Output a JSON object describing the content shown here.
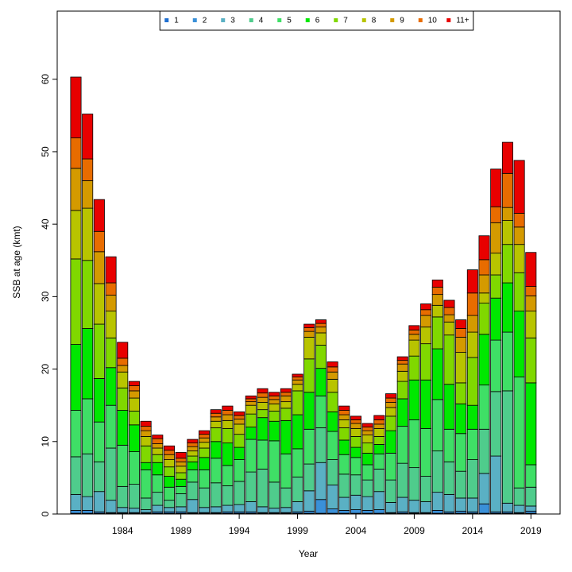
{
  "chart_data": {
    "type": "stacked-bar",
    "xlabel": "Year",
    "ylabel": "SSB at age (kmt)",
    "x": [
      1980,
      1981,
      1982,
      1983,
      1984,
      1985,
      1986,
      1987,
      1988,
      1989,
      1990,
      1991,
      1992,
      1993,
      1994,
      1995,
      1996,
      1997,
      1998,
      1999,
      2000,
      2001,
      2002,
      2003,
      2004,
      2005,
      2006,
      2007,
      2008,
      2009,
      2010,
      2011,
      2012,
      2013,
      2014,
      2015,
      2016,
      2017,
      2018,
      2019
    ],
    "xlim": [
      1978.4,
      2021.5
    ],
    "xticks": [
      1984,
      1989,
      1994,
      1999,
      2004,
      2009,
      2014,
      2019
    ],
    "ylim": [
      0,
      69.4
    ],
    "yticks": [
      0,
      10,
      20,
      30,
      40,
      50,
      60
    ],
    "legend": "top",
    "series": [
      {
        "name": "1",
        "color": "#1f6fd0",
        "values": [
          0.1,
          0.1,
          0.1,
          0.1,
          0.1,
          0.1,
          0.1,
          0.1,
          0.1,
          0.1,
          0.1,
          0.1,
          0.1,
          0.1,
          0.1,
          0.1,
          0.1,
          0.1,
          0.1,
          0.1,
          0.1,
          0.1,
          0.1,
          0.1,
          0.1,
          0.1,
          0.1,
          0.1,
          0.1,
          0.1,
          0.1,
          0.1,
          0.1,
          0.1,
          0.1,
          0.1,
          0.1,
          0.1,
          0.1,
          0.1
        ]
      },
      {
        "name": "2",
        "color": "#3a90d8",
        "values": [
          0.4,
          0.4,
          0.2,
          0.1,
          0.1,
          0.1,
          0.1,
          0.2,
          0.2,
          0.2,
          0.1,
          0.1,
          0.1,
          0.2,
          0.2,
          0.2,
          0.1,
          0.1,
          0.1,
          0.2,
          0.3,
          1.9,
          0.6,
          0.4,
          0.5,
          0.4,
          0.5,
          0.1,
          0.2,
          0.1,
          0.1,
          0.4,
          0.2,
          0.3,
          0.2,
          1.3,
          0.2,
          0.2,
          0.1,
          0.3
        ]
      },
      {
        "name": "3",
        "color": "#5ab0c4",
        "values": [
          2.2,
          1.9,
          2.8,
          1.7,
          0.7,
          0.6,
          0.4,
          0.9,
          0.6,
          0.7,
          1.8,
          0.7,
          0.8,
          0.9,
          1.0,
          1.4,
          0.8,
          0.6,
          0.7,
          1.4,
          2.8,
          5.1,
          3.3,
          1.8,
          2.0,
          1.9,
          2.5,
          1.4,
          2.0,
          1.7,
          1.5,
          2.5,
          2.4,
          1.8,
          1.9,
          4.2,
          7.7,
          1.2,
          1.0,
          0.7
        ]
      },
      {
        "name": "4",
        "color": "#4fcc8c",
        "values": [
          5.2,
          5.9,
          4.1,
          7.2,
          2.9,
          3.3,
          1.6,
          1.8,
          1.0,
          1.8,
          2.4,
          2.7,
          3.3,
          2.7,
          3.2,
          4.1,
          5.2,
          3.6,
          2.7,
          3.4,
          3.7,
          4.8,
          3.5,
          3.2,
          2.8,
          2.3,
          3.1,
          3.1,
          4.7,
          4.5,
          3.5,
          5.7,
          4.5,
          3.7,
          5.3,
          6.1,
          8.9,
          15.5,
          2.4,
          2.6
        ]
      },
      {
        "name": "5",
        "color": "#3fdf66",
        "values": [
          6.4,
          7.6,
          5.5,
          5.9,
          5.7,
          4.5,
          3.9,
          2.4,
          1.8,
          1.0,
          1.7,
          2.5,
          3.4,
          2.8,
          3.0,
          4.5,
          4.0,
          5.7,
          4.7,
          3.9,
          4.8,
          4.4,
          3.9,
          2.7,
          2.4,
          2.1,
          2.1,
          3.7,
          5.1,
          6.6,
          6.6,
          7.1,
          4.5,
          5.2,
          4.2,
          6.1,
          7.1,
          8.1,
          15.3,
          3.1
        ]
      },
      {
        "name": "6",
        "color": "#00e800",
        "values": [
          9.1,
          9.7,
          6.0,
          5.2,
          4.8,
          3.7,
          1.0,
          1.7,
          1.5,
          1.0,
          1.1,
          1.7,
          2.3,
          3.1,
          1.7,
          1.7,
          3.1,
          2.7,
          4.6,
          4.7,
          5.1,
          3.8,
          2.7,
          2.0,
          1.4,
          1.6,
          1.3,
          3.1,
          3.8,
          5.5,
          6.7,
          7.0,
          6.2,
          4.1,
          3.3,
          7.0,
          5.8,
          6.8,
          9.1,
          11.3
        ]
      },
      {
        "name": "7",
        "color": "#80d800",
        "values": [
          11.8,
          9.4,
          7.5,
          4.1,
          3.1,
          1.9,
          2.3,
          1.1,
          1.3,
          0.9,
          0.8,
          1.3,
          1.9,
          2.0,
          1.8,
          1.8,
          1.1,
          1.4,
          1.7,
          3.3,
          4.6,
          3.2,
          2.7,
          1.7,
          1.5,
          1.4,
          1.1,
          2.0,
          2.4,
          3.3,
          5.0,
          4.4,
          6.8,
          2.9,
          6.6,
          4.3,
          3.2,
          5.3,
          5.3,
          6.2
        ]
      },
      {
        "name": "8",
        "color": "#b8c400",
        "values": [
          6.7,
          7.2,
          5.6,
          3.7,
          2.2,
          1.8,
          1.3,
          0.9,
          1.0,
          0.9,
          0.7,
          0.8,
          0.9,
          1.1,
          1.4,
          1.2,
          1.0,
          1.0,
          0.9,
          0.9,
          3.0,
          1.7,
          1.8,
          1.1,
          1.1,
          1.1,
          1.1,
          1.2,
          1.4,
          2.2,
          2.3,
          1.6,
          1.8,
          4.2,
          3.5,
          1.4,
          3.0,
          3.3,
          3.9,
          3.7
        ]
      },
      {
        "name": "9",
        "color": "#d49a00",
        "values": [
          5.8,
          3.8,
          4.4,
          2.2,
          0.9,
          1.0,
          0.8,
          0.6,
          0.7,
          0.6,
          0.6,
          0.6,
          0.6,
          0.8,
          0.7,
          0.5,
          0.7,
          0.6,
          0.8,
          0.6,
          0.8,
          0.8,
          1.0,
          0.7,
          0.7,
          0.6,
          0.6,
          0.7,
          1.0,
          0.8,
          1.6,
          1.5,
          1.0,
          2.1,
          2.3,
          2.5,
          4.2,
          1.8,
          2.4,
          2.1
        ]
      },
      {
        "name": "10",
        "color": "#e86c00",
        "values": [
          4.2,
          3.0,
          2.8,
          1.7,
          1.0,
          0.7,
          0.6,
          0.7,
          0.6,
          0.5,
          0.5,
          0.5,
          0.5,
          0.6,
          0.5,
          0.4,
          0.6,
          0.5,
          0.5,
          0.4,
          0.5,
          0.5,
          0.7,
          0.6,
          0.5,
          0.5,
          0.6,
          0.6,
          0.5,
          0.6,
          0.8,
          1.0,
          1.0,
          1.2,
          3.1,
          2.1,
          2.2,
          4.7,
          1.9,
          1.3
        ]
      },
      {
        "name": "11+",
        "color": "#e80000",
        "values": [
          8.4,
          6.2,
          4.4,
          3.6,
          2.2,
          0.6,
          0.7,
          0.5,
          0.6,
          0.8,
          0.5,
          0.5,
          0.5,
          0.6,
          0.5,
          0.4,
          0.6,
          0.5,
          0.5,
          0.4,
          0.5,
          0.5,
          0.7,
          0.6,
          0.5,
          0.5,
          0.6,
          0.6,
          0.5,
          0.6,
          0.8,
          1.0,
          1.0,
          1.2,
          3.2,
          3.3,
          5.2,
          4.3,
          7.3,
          4.7
        ]
      }
    ]
  }
}
